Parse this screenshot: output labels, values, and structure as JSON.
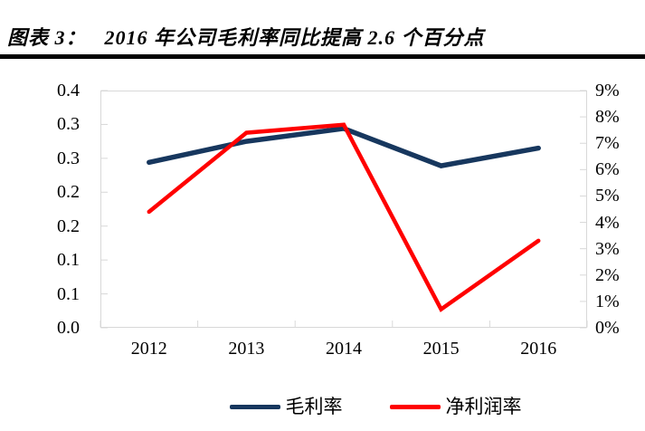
{
  "caption": {
    "prefix": "图表 3：",
    "title": "2016 年公司毛利率同比提高 2.6 个百分点"
  },
  "chart_data": {
    "type": "line",
    "categories": [
      "2012",
      "2013",
      "2014",
      "2015",
      "2016"
    ],
    "series": [
      {
        "key": "gross-margin",
        "name": "毛利率",
        "axis": "left",
        "color": "#17375E",
        "stroke_width": 5.5,
        "values": [
          0.244,
          0.275,
          0.294,
          0.239,
          0.265
        ]
      },
      {
        "key": "net-profit-margin",
        "name": "净利润率",
        "axis": "right",
        "color": "#FF0000",
        "stroke_width": 4.5,
        "values": [
          0.044,
          0.074,
          0.077,
          0.007,
          0.033
        ]
      }
    ],
    "axes": {
      "left": {
        "min": 0,
        "max": 0.35,
        "step": 0.05,
        "tick_labels_top_to_bottom": [
          "0.4",
          "0.3",
          "0.3",
          "0.2",
          "0.2",
          "0.1",
          "0.1",
          "0.0"
        ]
      },
      "right": {
        "min": 0,
        "max": 0.09,
        "step": 0.01,
        "tick_labels_top_to_bottom": [
          "9%",
          "8%",
          "7%",
          "6%",
          "5%",
          "4%",
          "3%",
          "2%",
          "1%",
          "0%"
        ]
      }
    },
    "grid": false,
    "legend_position": "bottom",
    "title": "2016 年公司毛利率同比提高 2.6 个百分点",
    "xlabel": "",
    "ylabel": ""
  },
  "legend": {
    "items": [
      {
        "key": "gross-margin",
        "label": "毛利率",
        "color": "#17375E"
      },
      {
        "key": "net-profit-margin",
        "label": "净利润率",
        "color": "#FF0000"
      }
    ]
  },
  "style": {
    "plot_border_color": "#D8D8D8",
    "rule_color": "#000000",
    "text_color": "#000000"
  }
}
